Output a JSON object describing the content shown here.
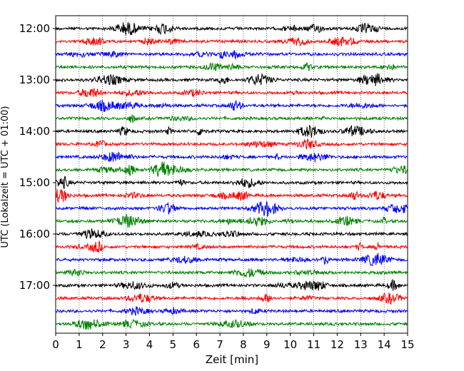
{
  "chart_data": {
    "type": "line",
    "title": "",
    "xlabel": "Zeit  [min]",
    "ylabel": "UTC (Lokalzeit = UTC + 01:00)",
    "xlim": [
      0,
      15
    ],
    "x_ticks": [
      "0",
      "1",
      "2",
      "3",
      "4",
      "5",
      "6",
      "7",
      "8",
      "9",
      "10",
      "11",
      "12",
      "13",
      "14",
      "15"
    ],
    "y_ticks": [
      "12:00",
      "13:00",
      "14:00",
      "15:00",
      "16:00",
      "17:00"
    ],
    "grid": "vertical dotted lines at each minute",
    "legend": "none",
    "row_start_times": [
      "12:00",
      "12:15",
      "12:30",
      "12:45",
      "13:00",
      "13:15",
      "13:30",
      "13:45",
      "14:00",
      "14:15",
      "14:30",
      "14:45",
      "15:00",
      "15:15",
      "15:30",
      "15:45",
      "16:00",
      "16:15",
      "16:30",
      "16:45",
      "17:00",
      "17:15",
      "17:30",
      "17:45"
    ],
    "row_colors": [
      "#000000",
      "#ff0000",
      "#0000ff",
      "#008000"
    ],
    "series_note": "24 seismogram traces, 15 minutes each, colors cycling black, red, blue, green"
  }
}
